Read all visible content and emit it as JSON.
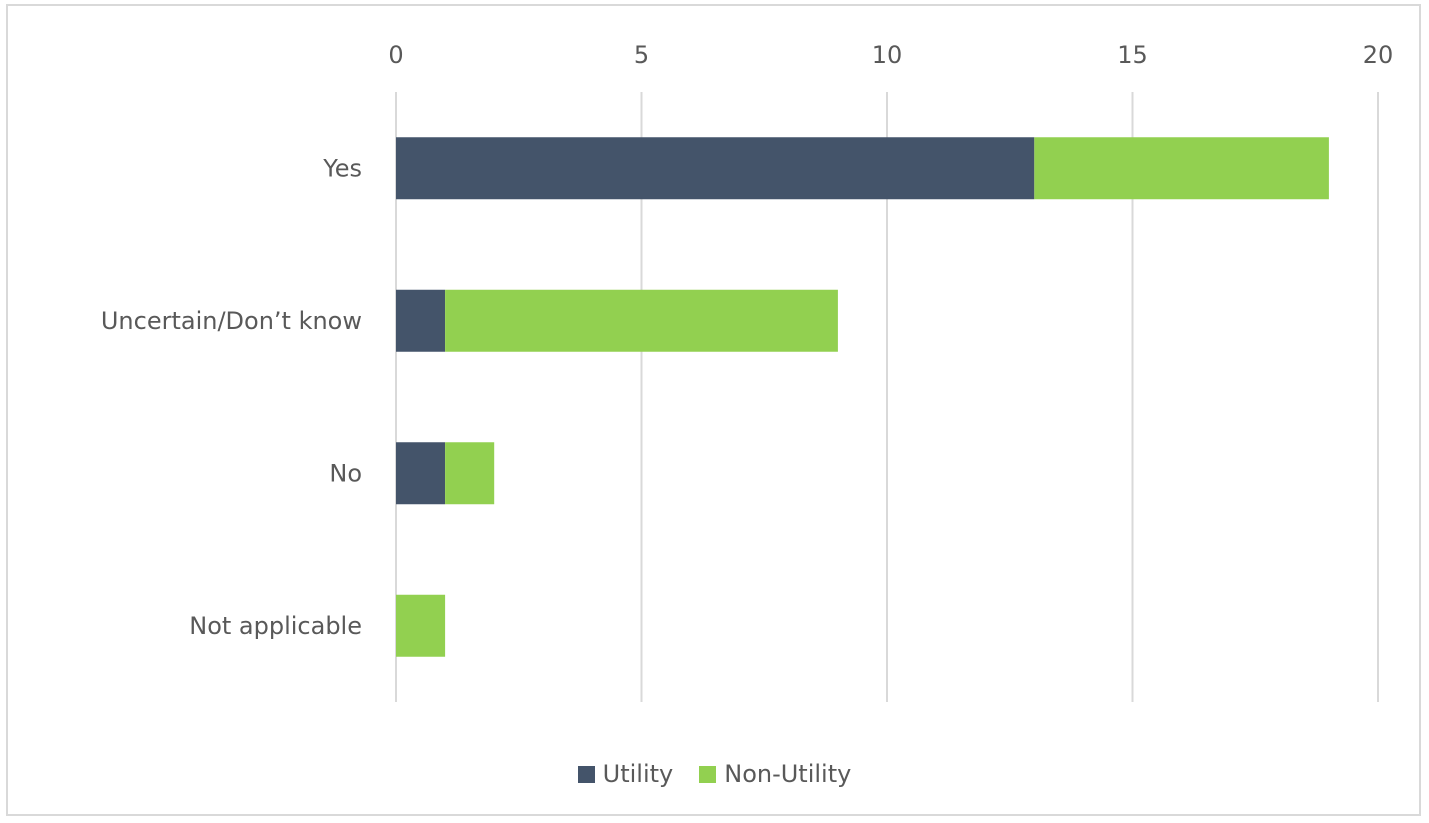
{
  "chart_data": {
    "type": "bar",
    "orientation": "horizontal",
    "stacked": true,
    "categories": [
      "Yes",
      "Uncertain/Don’t know",
      "No",
      "Not applicable"
    ],
    "series": [
      {
        "name": "Utility",
        "color": "#44546a",
        "values": [
          13,
          1,
          1,
          0
        ]
      },
      {
        "name": "Non-Utility",
        "color": "#92d050",
        "values": [
          6,
          8,
          1,
          1
        ]
      }
    ],
    "xlim": [
      0,
      20
    ],
    "xticks": [
      0,
      5,
      10,
      15,
      20
    ],
    "x_axis_position": "top",
    "grid": true,
    "legend": "bottom"
  }
}
